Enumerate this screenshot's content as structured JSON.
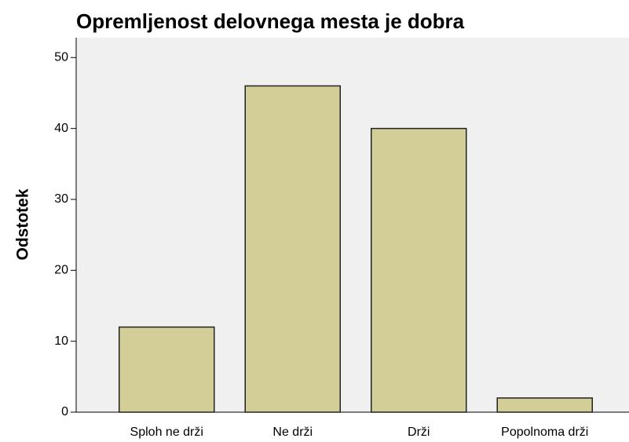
{
  "chart_data": {
    "type": "bar",
    "title": "Opremljenost delovnega mesta je dobra",
    "ylabel": "Odstotek",
    "categories": [
      "Sploh ne drži",
      "Ne drži",
      "Drži",
      "Popolnoma drži"
    ],
    "values": [
      12,
      46,
      40,
      2
    ],
    "color": "#d3ce97",
    "ylim": [
      0,
      52.8
    ],
    "yticks": [
      0,
      10,
      20,
      30,
      40,
      50
    ],
    "grid": false
  }
}
